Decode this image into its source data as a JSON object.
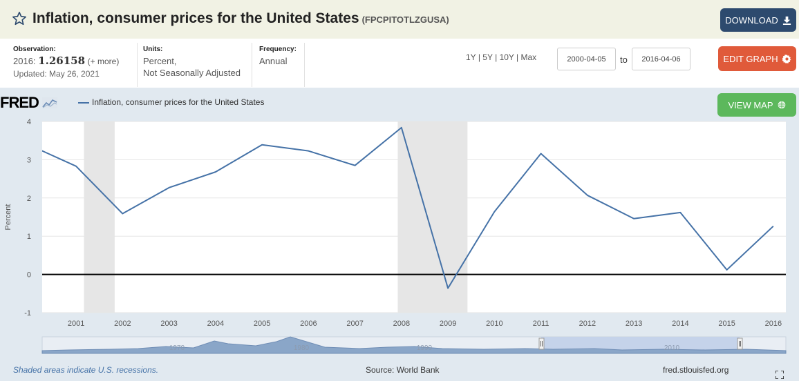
{
  "header": {
    "title": "Inflation, consumer prices for the United States",
    "series_id": "(FPCPITOTLZGUSA)",
    "download_label": "DOWNLOAD",
    "download_icon": "download-icon",
    "star_icon": "star-outline-icon"
  },
  "observation": {
    "label": "Observation:",
    "year": "2016:",
    "value": "1.26158",
    "more": "(+ more)",
    "updated": "Updated: May 26, 2021"
  },
  "units": {
    "label": "Units:",
    "line1": "Percent,",
    "line2": "Not Seasonally Adjusted"
  },
  "frequency": {
    "label": "Frequency:",
    "value": "Annual"
  },
  "ranges": {
    "r1": "1Y",
    "r5": "5Y",
    "r10": "10Y",
    "max": "Max",
    "sep": "|"
  },
  "dates": {
    "start": "2000-04-05",
    "to": "to",
    "end": "2016-04-06"
  },
  "edit_graph": {
    "label": "EDIT GRAPH",
    "icon": "gear-icon"
  },
  "view_map": {
    "label": "VIEW MAP",
    "icon": "globe-icon"
  },
  "logo": {
    "text": "FRED"
  },
  "legend": {
    "series_name": "Inflation, consumer prices for the United States"
  },
  "footer": {
    "recession_note": "Shaded areas indicate U.S. recessions.",
    "source": "Source: World Bank",
    "site": "fred.stlouisfed.org"
  },
  "colors": {
    "series": "#4572a7",
    "recession": "#e6e6e6",
    "download_btn": "#2d4a6e",
    "edit_btn": "#e05a3a",
    "map_btn": "#5cb85c",
    "title_bar": "#f1f2e4",
    "graph_bg": "#e1e9f0"
  },
  "navigator": {
    "labels": [
      "1970",
      "1980",
      "1990",
      "2010"
    ]
  },
  "chart_data": {
    "type": "line",
    "ylabel": "Percent",
    "ylim": [
      -1,
      4
    ],
    "yticks": [
      -1,
      0,
      1,
      2,
      3,
      4
    ],
    "xlim": [
      2000.27,
      2016.27
    ],
    "xticks": [
      2001,
      2002,
      2003,
      2004,
      2005,
      2006,
      2007,
      2008,
      2009,
      2010,
      2011,
      2012,
      2013,
      2014,
      2015,
      2016
    ],
    "series": [
      {
        "name": "Inflation, consumer prices for the United States",
        "x": [
          2000,
          2001,
          2002,
          2003,
          2004,
          2005,
          2006,
          2007,
          2008,
          2009,
          2010,
          2011,
          2012,
          2013,
          2014,
          2015,
          2016
        ],
        "values": [
          3.38,
          2.83,
          1.59,
          2.27,
          2.68,
          3.39,
          3.23,
          2.85,
          3.84,
          -0.36,
          1.64,
          3.16,
          2.07,
          1.46,
          1.62,
          0.12,
          1.26158
        ]
      }
    ],
    "recessions": [
      [
        2001.17,
        2001.83
      ],
      [
        2007.92,
        2009.42
      ]
    ],
    "zero_line": 0,
    "grid": true
  }
}
